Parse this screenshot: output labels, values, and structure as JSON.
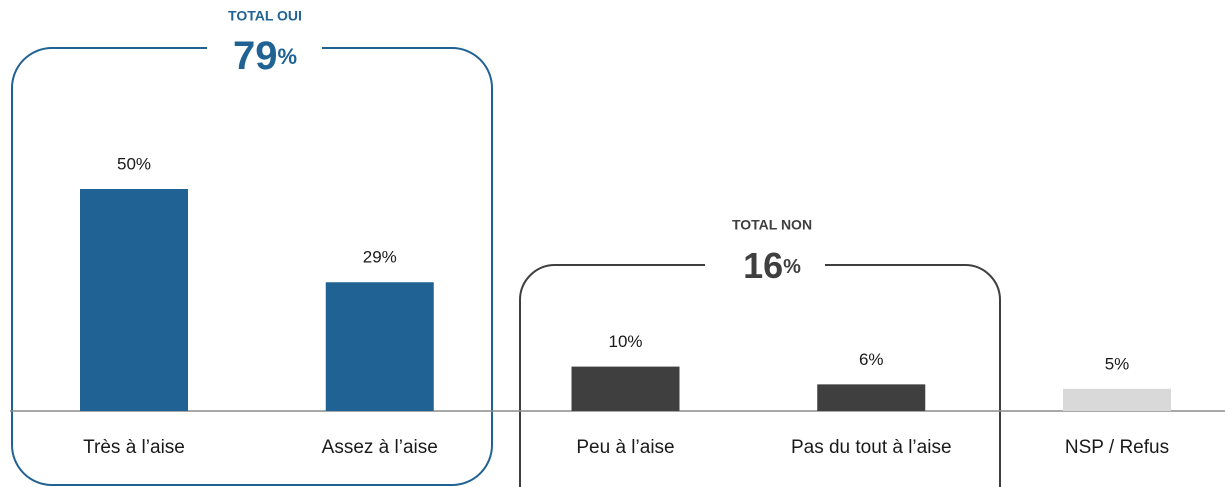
{
  "chart_data": {
    "type": "bar",
    "categories": [
      "Très à l’aise",
      "Assez à l’aise",
      "Peu à l’aise",
      "Pas du tout à l’aise",
      "NSP / Refus"
    ],
    "values": [
      50,
      29,
      10,
      6,
      5
    ],
    "value_labels": [
      "50%",
      "29%",
      "10%",
      "6%",
      "5%"
    ],
    "colors": [
      "#1f6293",
      "#1f6293",
      "#3f3f3f",
      "#3f3f3f",
      "#d9d9d9"
    ],
    "annotations": [
      {
        "title": "TOTAL OUI",
        "value": 79,
        "unit": "%",
        "color": "#1f6293"
      },
      {
        "title": "TOTAL NON",
        "value": 16,
        "unit": "%",
        "color": "#3f3f3f"
      }
    ]
  }
}
